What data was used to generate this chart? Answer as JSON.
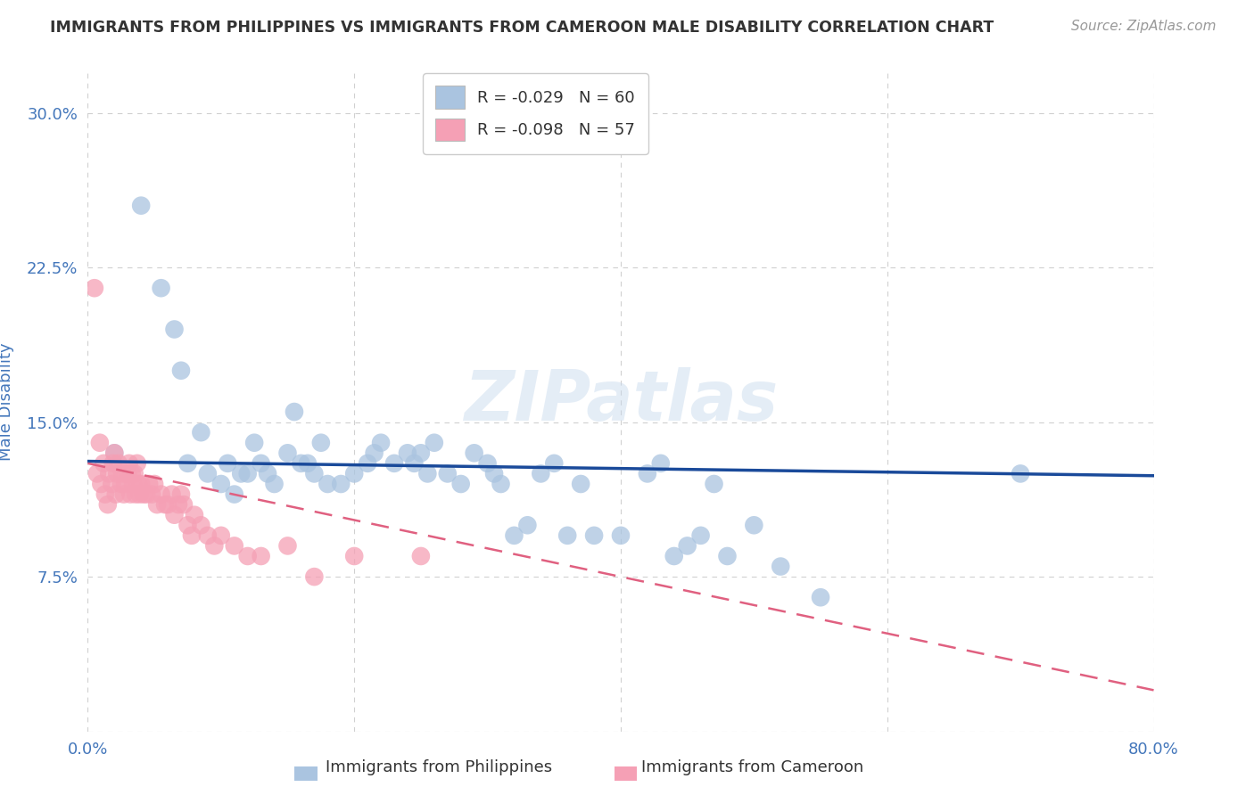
{
  "title": "IMMIGRANTS FROM PHILIPPINES VS IMMIGRANTS FROM CAMEROON MALE DISABILITY CORRELATION CHART",
  "source": "Source: ZipAtlas.com",
  "ylabel": "Male Disability",
  "xlim": [
    0.0,
    0.8
  ],
  "ylim": [
    0.0,
    0.32
  ],
  "xticks": [
    0.0,
    0.2,
    0.4,
    0.6,
    0.8
  ],
  "xtick_labels": [
    "0.0%",
    "",
    "",
    "",
    "80.0%"
  ],
  "yticks": [
    0.0,
    0.075,
    0.15,
    0.225,
    0.3
  ],
  "ytick_labels": [
    "",
    "7.5%",
    "15.0%",
    "22.5%",
    "30.0%"
  ],
  "grid_color": "#d0d0d0",
  "background_color": "#ffffff",
  "watermark": "ZIPatlas",
  "philippines_color": "#aac4e0",
  "cameroon_color": "#f5a0b5",
  "philippines_line_color": "#1a4a9a",
  "cameroon_line_color": "#e06080",
  "legend_r_philippines": "R = -0.029",
  "legend_n_philippines": "N = 60",
  "legend_r_cameroon": "R = -0.098",
  "legend_n_cameroon": "N = 57",
  "philippines_x": [
    0.02,
    0.04,
    0.055,
    0.065,
    0.07,
    0.075,
    0.085,
    0.09,
    0.1,
    0.105,
    0.11,
    0.115,
    0.12,
    0.125,
    0.13,
    0.135,
    0.14,
    0.15,
    0.155,
    0.16,
    0.165,
    0.17,
    0.175,
    0.18,
    0.19,
    0.2,
    0.21,
    0.215,
    0.22,
    0.23,
    0.24,
    0.245,
    0.25,
    0.255,
    0.26,
    0.27,
    0.28,
    0.29,
    0.3,
    0.305,
    0.31,
    0.32,
    0.33,
    0.34,
    0.35,
    0.36,
    0.37,
    0.38,
    0.4,
    0.42,
    0.43,
    0.44,
    0.45,
    0.46,
    0.47,
    0.48,
    0.5,
    0.52,
    0.55,
    0.7
  ],
  "philippines_y": [
    0.135,
    0.255,
    0.215,
    0.195,
    0.175,
    0.13,
    0.145,
    0.125,
    0.12,
    0.13,
    0.115,
    0.125,
    0.125,
    0.14,
    0.13,
    0.125,
    0.12,
    0.135,
    0.155,
    0.13,
    0.13,
    0.125,
    0.14,
    0.12,
    0.12,
    0.125,
    0.13,
    0.135,
    0.14,
    0.13,
    0.135,
    0.13,
    0.135,
    0.125,
    0.14,
    0.125,
    0.12,
    0.135,
    0.13,
    0.125,
    0.12,
    0.095,
    0.1,
    0.125,
    0.13,
    0.095,
    0.12,
    0.095,
    0.095,
    0.125,
    0.13,
    0.085,
    0.09,
    0.095,
    0.12,
    0.085,
    0.1,
    0.08,
    0.065,
    0.125
  ],
  "cameroon_x": [
    0.005,
    0.007,
    0.009,
    0.01,
    0.012,
    0.013,
    0.015,
    0.016,
    0.018,
    0.019,
    0.02,
    0.021,
    0.022,
    0.023,
    0.025,
    0.026,
    0.027,
    0.028,
    0.03,
    0.031,
    0.032,
    0.033,
    0.034,
    0.035,
    0.036,
    0.037,
    0.038,
    0.039,
    0.04,
    0.042,
    0.044,
    0.046,
    0.048,
    0.05,
    0.052,
    0.055,
    0.058,
    0.06,
    0.063,
    0.065,
    0.068,
    0.07,
    0.072,
    0.075,
    0.078,
    0.08,
    0.085,
    0.09,
    0.095,
    0.1,
    0.11,
    0.12,
    0.13,
    0.15,
    0.17,
    0.2,
    0.25
  ],
  "cameroon_y": [
    0.215,
    0.125,
    0.14,
    0.12,
    0.13,
    0.115,
    0.11,
    0.125,
    0.12,
    0.13,
    0.135,
    0.115,
    0.125,
    0.13,
    0.12,
    0.125,
    0.115,
    0.12,
    0.125,
    0.13,
    0.115,
    0.125,
    0.12,
    0.125,
    0.115,
    0.13,
    0.12,
    0.115,
    0.12,
    0.115,
    0.115,
    0.12,
    0.115,
    0.12,
    0.11,
    0.115,
    0.11,
    0.11,
    0.115,
    0.105,
    0.11,
    0.115,
    0.11,
    0.1,
    0.095,
    0.105,
    0.1,
    0.095,
    0.09,
    0.095,
    0.09,
    0.085,
    0.085,
    0.09,
    0.075,
    0.085,
    0.085
  ],
  "phil_line_x0": 0.0,
  "phil_line_x1": 0.8,
  "phil_line_y0": 0.131,
  "phil_line_y1": 0.124,
  "cam_line_x0": 0.0,
  "cam_line_x1": 0.8,
  "cam_line_y0": 0.13,
  "cam_line_y1": 0.02,
  "title_color": "#333333",
  "axis_label_color": "#4477bb",
  "tick_color": "#4477bb"
}
